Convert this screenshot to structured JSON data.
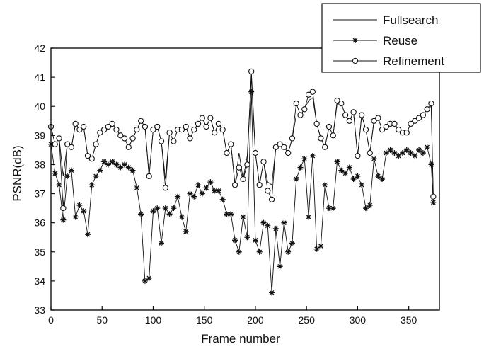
{
  "chart_data": {
    "type": "line",
    "title": "",
    "xlabel": "Frame number",
    "ylabel": "PSNR(dB)",
    "xlim": [
      0,
      380
    ],
    "ylim": [
      33,
      42
    ],
    "xticks": [
      "0",
      "50",
      "100",
      "150",
      "200",
      "250",
      "300",
      "350"
    ],
    "yticks": [
      "33",
      "34",
      "35",
      "36",
      "37",
      "38",
      "39",
      "40",
      "41",
      "42"
    ],
    "grid": false,
    "legend_position": "top-right",
    "x": [
      0,
      4,
      8,
      12,
      16,
      20,
      24,
      28,
      32,
      36,
      40,
      44,
      48,
      52,
      56,
      60,
      64,
      68,
      72,
      76,
      80,
      84,
      88,
      92,
      96,
      100,
      104,
      108,
      112,
      116,
      120,
      124,
      128,
      132,
      136,
      140,
      144,
      148,
      152,
      156,
      160,
      164,
      168,
      172,
      176,
      180,
      184,
      188,
      192,
      196,
      200,
      204,
      208,
      212,
      216,
      220,
      224,
      228,
      232,
      236,
      240,
      244,
      248,
      252,
      256,
      260,
      264,
      268,
      272,
      276,
      280,
      284,
      288,
      292,
      296,
      300,
      304,
      308,
      312,
      316,
      320,
      324,
      328,
      332,
      336,
      340,
      344,
      348,
      352,
      356,
      360,
      364,
      368,
      372,
      374
    ],
    "series": [
      {
        "name": "Fullsearch",
        "marker": "none",
        "values": [
          39.3,
          38.7,
          38.9,
          37.6,
          38.7,
          38.6,
          39.4,
          39.2,
          39.3,
          38.3,
          38.2,
          38.7,
          39.1,
          39.2,
          39.3,
          39.4,
          39.2,
          39.0,
          38.9,
          38.6,
          38.9,
          39.2,
          39.5,
          39.3,
          37.6,
          39.2,
          39.3,
          38.8,
          37.5,
          39.1,
          38.8,
          39.2,
          39.2,
          39.3,
          38.9,
          39.2,
          39.4,
          39.6,
          39.3,
          39.6,
          39.1,
          39.4,
          39.2,
          38.4,
          38.7,
          37.3,
          38.4,
          37.5,
          38.3,
          41.0,
          38.4,
          37.3,
          38.1,
          37.4,
          37.3,
          38.6,
          38.7,
          38.6,
          38.4,
          38.9,
          39.7,
          39.7,
          39.9,
          40.2,
          40.3,
          39.4,
          38.9,
          38.6,
          39.3,
          39.0,
          40.1,
          40.1,
          39.7,
          39.5,
          39.8,
          38.3,
          39.7,
          39.2,
          38.4,
          39.5,
          39.6,
          39.2,
          39.3,
          39.4,
          39.4,
          39.2,
          39.1,
          39.1,
          39.4,
          39.5,
          39.6,
          39.7,
          39.9,
          40.0,
          37.0
        ]
      },
      {
        "name": "Reuse",
        "marker": "star",
        "values": [
          38.7,
          37.7,
          37.3,
          36.1,
          37.6,
          37.8,
          36.2,
          36.6,
          36.4,
          35.6,
          37.3,
          37.6,
          37.8,
          38.1,
          38.0,
          38.1,
          38.0,
          37.9,
          38.0,
          37.9,
          37.8,
          37.2,
          36.3,
          34.0,
          34.1,
          36.4,
          36.5,
          35.3,
          36.5,
          36.3,
          36.5,
          36.9,
          36.2,
          35.7,
          37.0,
          36.9,
          37.3,
          37.0,
          37.2,
          37.4,
          37.1,
          37.1,
          36.8,
          36.3,
          36.3,
          35.4,
          35.0,
          36.2,
          35.5,
          40.5,
          35.4,
          35.0,
          36.0,
          35.9,
          33.6,
          35.8,
          34.5,
          36.0,
          35.0,
          35.3,
          37.5,
          37.9,
          38.2,
          36.2,
          38.3,
          35.1,
          35.2,
          37.3,
          36.5,
          36.5,
          38.1,
          37.8,
          37.7,
          37.9,
          37.5,
          37.6,
          37.3,
          36.5,
          36.6,
          38.2,
          37.6,
          37.5,
          38.4,
          38.5,
          38.4,
          38.3,
          38.4,
          38.5,
          38.4,
          38.3,
          38.5,
          38.4,
          38.6,
          38.0,
          36.7
        ]
      },
      {
        "name": "Refinement",
        "marker": "circle",
        "values": [
          39.3,
          38.7,
          38.9,
          36.5,
          38.7,
          38.6,
          39.4,
          39.2,
          39.3,
          38.3,
          38.2,
          38.7,
          39.1,
          39.2,
          39.3,
          39.4,
          39.2,
          39.0,
          38.9,
          38.6,
          38.9,
          39.2,
          39.5,
          39.3,
          37.6,
          39.2,
          39.3,
          38.8,
          37.2,
          39.1,
          38.8,
          39.2,
          39.2,
          39.3,
          38.9,
          39.2,
          39.4,
          39.6,
          39.3,
          39.6,
          39.1,
          39.4,
          39.2,
          38.4,
          38.7,
          37.3,
          37.9,
          37.5,
          38.0,
          41.2,
          38.4,
          37.3,
          38.1,
          37.1,
          36.8,
          38.6,
          38.7,
          38.6,
          38.4,
          38.9,
          40.1,
          39.7,
          39.9,
          40.4,
          40.5,
          39.4,
          38.9,
          38.6,
          39.3,
          39.0,
          40.2,
          40.1,
          39.7,
          39.5,
          39.8,
          38.3,
          39.7,
          39.2,
          38.4,
          39.5,
          39.6,
          39.2,
          39.3,
          39.4,
          39.4,
          39.2,
          39.1,
          39.1,
          39.4,
          39.5,
          39.6,
          39.7,
          39.9,
          40.1,
          36.9
        ]
      }
    ]
  }
}
